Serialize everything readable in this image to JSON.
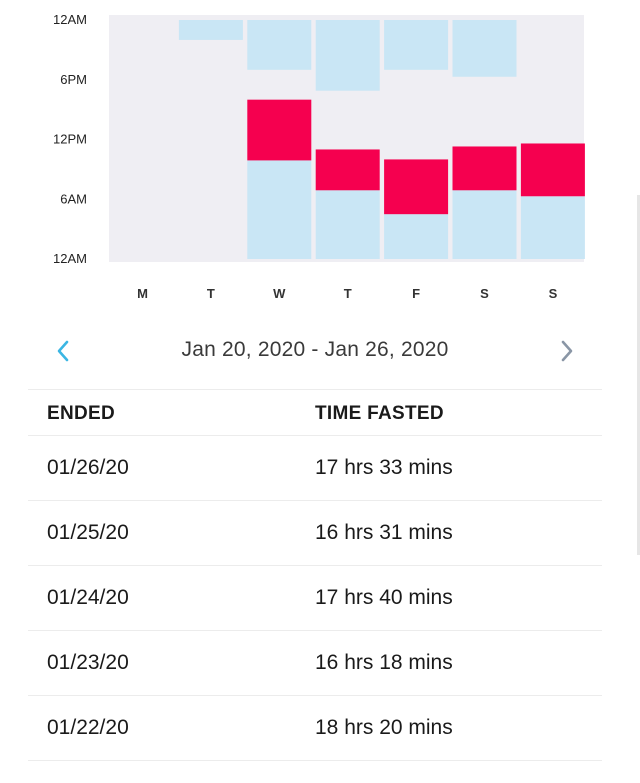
{
  "chart_data": {
    "type": "bar",
    "y_tick_labels": [
      "12AM",
      "6PM",
      "12PM",
      "6AM",
      "12AM"
    ],
    "categories": [
      "M",
      "T",
      "W",
      "T",
      "F",
      "S",
      "S"
    ],
    "y_unit": "hours from 12AM (bottom) to 12AM (top)",
    "ylim": [
      0,
      24
    ],
    "colors": {
      "plot_background": "#efeef3",
      "fasting_block": "#c9e6f5",
      "eating_window": "#f5004f"
    },
    "days": [
      {
        "label": "M",
        "segments": []
      },
      {
        "label": "T",
        "segments": [
          {
            "kind": "fasting_block",
            "start": 22.0,
            "end": 24.0
          }
        ]
      },
      {
        "label": "W",
        "segments": [
          {
            "kind": "fasting_block",
            "start": 0.0,
            "end": 9.9
          },
          {
            "kind": "eating_window",
            "start": 9.9,
            "end": 16.0
          },
          {
            "kind": "fasting_block",
            "start": 19.0,
            "end": 24.0
          }
        ]
      },
      {
        "label": "T",
        "segments": [
          {
            "kind": "fasting_block",
            "start": 0.0,
            "end": 6.9
          },
          {
            "kind": "eating_window",
            "start": 6.9,
            "end": 11.0
          },
          {
            "kind": "fasting_block",
            "start": 16.9,
            "end": 24.0
          }
        ]
      },
      {
        "label": "F",
        "segments": [
          {
            "kind": "fasting_block",
            "start": 0.0,
            "end": 4.5
          },
          {
            "kind": "eating_window",
            "start": 4.5,
            "end": 10.0
          },
          {
            "kind": "fasting_block",
            "start": 19.0,
            "end": 24.0
          }
        ]
      },
      {
        "label": "S",
        "segments": [
          {
            "kind": "fasting_block",
            "start": 0.0,
            "end": 6.9
          },
          {
            "kind": "eating_window",
            "start": 6.9,
            "end": 11.3
          },
          {
            "kind": "fasting_block",
            "start": 18.3,
            "end": 24.0
          }
        ]
      },
      {
        "label": "S",
        "segments": [
          {
            "kind": "fasting_block",
            "start": 0.0,
            "end": 6.3
          },
          {
            "kind": "eating_window",
            "start": 6.3,
            "end": 11.6
          }
        ]
      }
    ]
  },
  "date_nav": {
    "range_text": "Jan 20, 2020 - Jan 26, 2020",
    "prev_icon": "chevron-left-icon",
    "next_icon": "chevron-right-icon",
    "prev_color": "#3bb6e3",
    "next_color": "#8a96a6"
  },
  "table": {
    "headers": {
      "ended": "ENDED",
      "time_fasted": "TIME FASTED"
    },
    "rows": [
      {
        "ended": "01/26/20",
        "time_fasted": "17 hrs 33 mins"
      },
      {
        "ended": "01/25/20",
        "time_fasted": "16 hrs 31 mins"
      },
      {
        "ended": "01/24/20",
        "time_fasted": "17 hrs 40 mins"
      },
      {
        "ended": "01/23/20",
        "time_fasted": "16 hrs 18 mins"
      },
      {
        "ended": "01/22/20",
        "time_fasted": "18 hrs 20 mins"
      }
    ]
  }
}
